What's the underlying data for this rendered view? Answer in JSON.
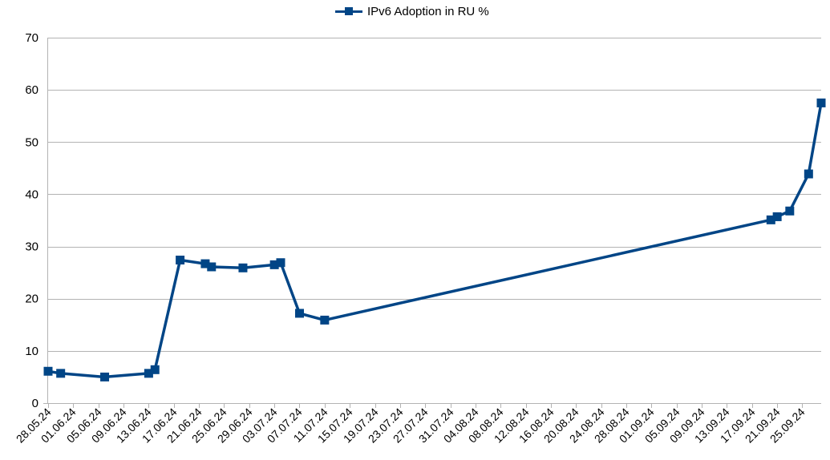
{
  "chart_data": {
    "type": "line",
    "legend": "top",
    "grid": true,
    "ylim": [
      0,
      70
    ],
    "yticks": [
      0,
      10,
      20,
      30,
      40,
      50,
      60,
      70
    ],
    "xlim": [
      "28.05.24",
      "28.09.24"
    ],
    "xticks": [
      "28.05.24",
      "01.06.24",
      "05.06.24",
      "09.06.24",
      "13.06.24",
      "17.06.24",
      "21.06.24",
      "25.06.24",
      "29.06.24",
      "03.07.24",
      "07.07.24",
      "11.07.24",
      "15.07.24",
      "19.07.24",
      "23.07.24",
      "27.07.24",
      "31.07.24",
      "04.08.24",
      "08.08.24",
      "12.08.24",
      "16.08.24",
      "20.08.24",
      "24.08.24",
      "28.08.24",
      "01.09.24",
      "05.09.24",
      "09.09.24",
      "13.09.24",
      "17.09.24",
      "21.09.24",
      "25.09.24"
    ],
    "series": [
      {
        "name": "IPv6 Adoption in RU %",
        "color": "#004586",
        "points": [
          {
            "x": "28.05.24",
            "y": 6.1
          },
          {
            "x": "30.05.24",
            "y": 5.7
          },
          {
            "x": "06.06.24",
            "y": 5.0
          },
          {
            "x": "13.06.24",
            "y": 5.7
          },
          {
            "x": "14.06.24",
            "y": 6.4
          },
          {
            "x": "18.06.24",
            "y": 27.4
          },
          {
            "x": "22.06.24",
            "y": 26.7
          },
          {
            "x": "23.06.24",
            "y": 26.1
          },
          {
            "x": "28.06.24",
            "y": 25.9
          },
          {
            "x": "03.07.24",
            "y": 26.5
          },
          {
            "x": "04.07.24",
            "y": 26.9
          },
          {
            "x": "07.07.24",
            "y": 17.2
          },
          {
            "x": "11.07.24",
            "y": 15.9
          },
          {
            "x": "20.09.24",
            "y": 35.1
          },
          {
            "x": "21.09.24",
            "y": 35.7
          },
          {
            "x": "23.09.24",
            "y": 36.8
          },
          {
            "x": "26.09.24",
            "y": 43.9
          },
          {
            "x": "28.09.24",
            "y": 57.5
          }
        ]
      }
    ]
  }
}
